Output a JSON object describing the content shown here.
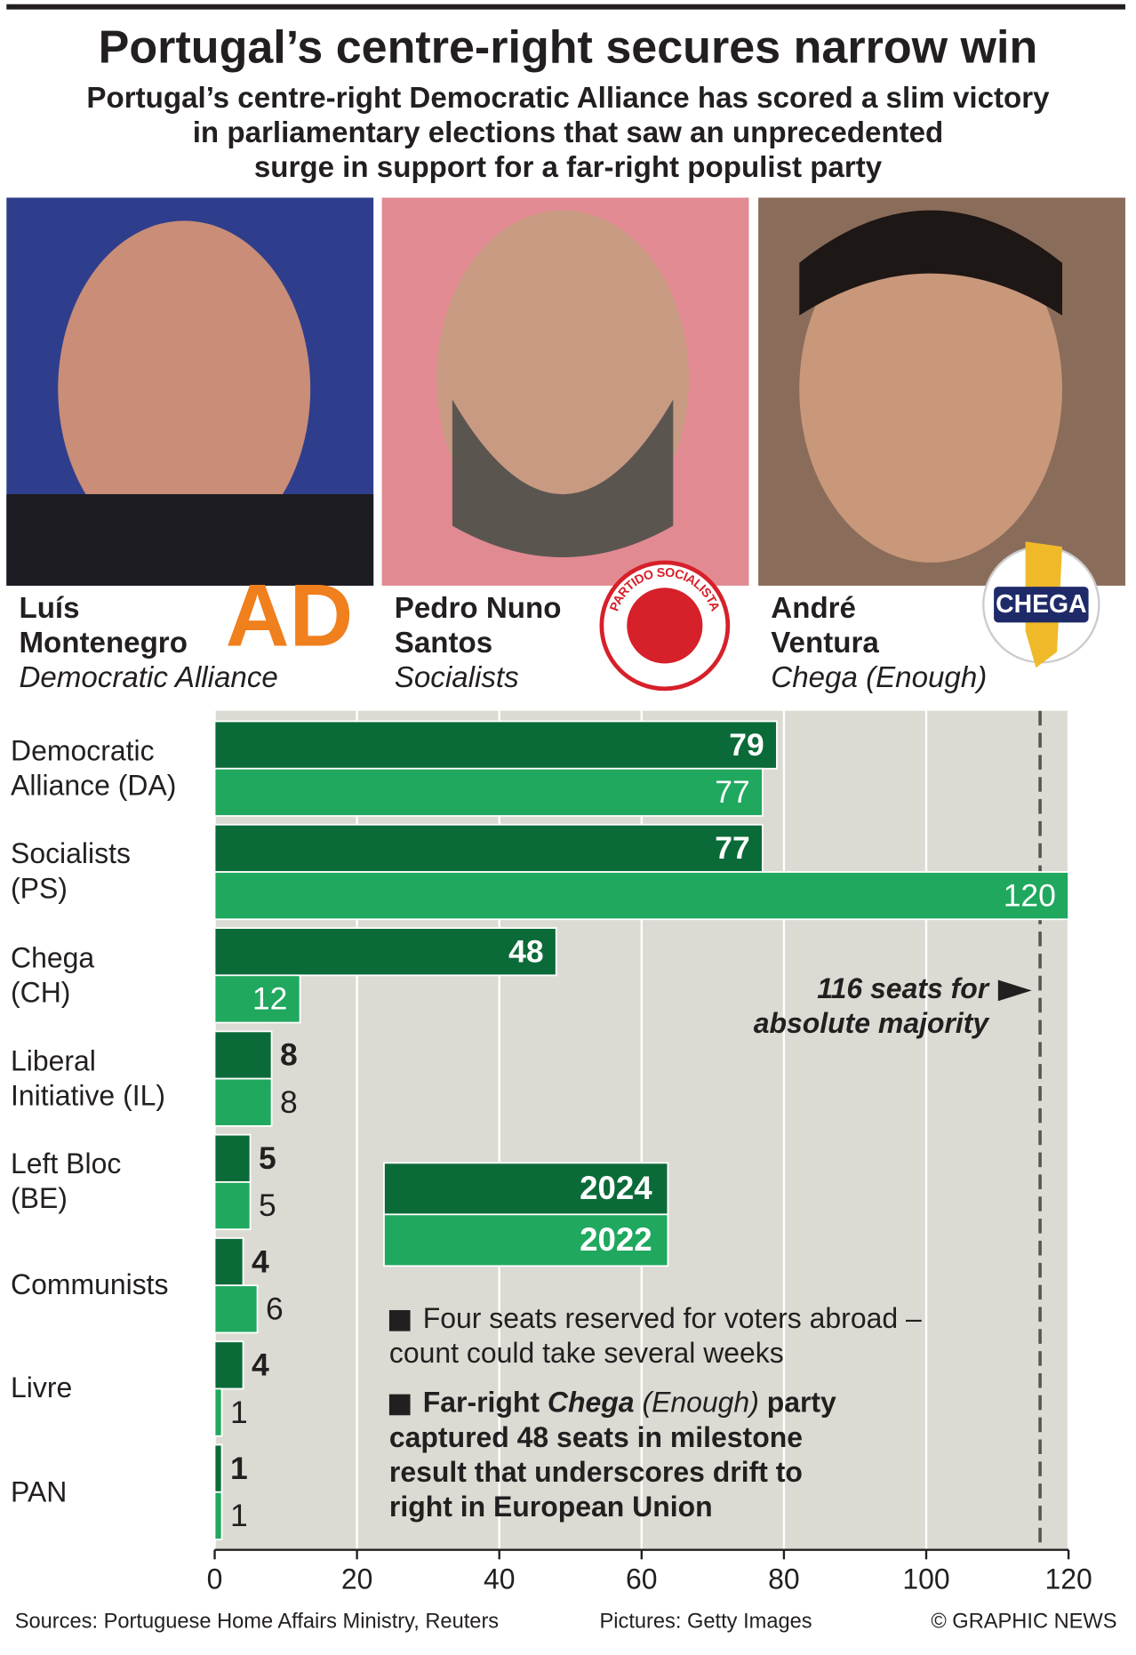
{
  "header": {
    "title": "Portugal’s centre-right secures narrow win",
    "subtitle_lines": [
      "Portugal’s centre-right Democratic Alliance has scored a slim victory",
      "in parliamentary elections that saw an unprecedented",
      "surge in support for a far-right populist party"
    ]
  },
  "leaders": [
    {
      "name_lines": [
        "Luís",
        "Montenegro"
      ],
      "party": "Democratic Alliance",
      "logo": "AD"
    },
    {
      "name_lines": [
        "Pedro Nuno",
        "Santos"
      ],
      "party": "Socialists",
      "logo": "PARTIDO SOCIALISTA"
    },
    {
      "name_lines": [
        "André",
        "Ventura"
      ],
      "party": "Chega (Enough)",
      "logo": "CHEGA"
    }
  ],
  "chart_data": {
    "type": "hbar",
    "categories": [
      "Democratic\nAlliance (DA)",
      "Socialists\n(PS)",
      "Chega\n(CH)",
      "Liberal\nInitiative (IL)",
      "Left Bloc\n(BE)",
      "Communists",
      "Livre",
      "PAN"
    ],
    "series": [
      {
        "name": "2024",
        "color": "#0b6b38",
        "values": [
          79,
          77,
          48,
          8,
          5,
          4,
          4,
          1
        ]
      },
      {
        "name": "2022",
        "color": "#1fa85e",
        "values": [
          77,
          120,
          12,
          8,
          5,
          6,
          1,
          1
        ]
      }
    ],
    "xlim": [
      0,
      120
    ],
    "xticks": [
      0,
      20,
      40,
      60,
      80,
      100,
      120
    ],
    "grid": true,
    "majority": {
      "value": 116,
      "label_lines": [
        "116 seats for",
        "absolute majority"
      ]
    }
  },
  "notes": [
    {
      "parts": [
        "Four seats reserved for voters abroad – count could take several weeks"
      ]
    },
    {
      "parts": [
        "Far-right ",
        "Chega",
        " (Enough)",
        " party captured 48 seats in milestone result that underscores drift to right in European Union"
      ]
    }
  ],
  "footer": {
    "sources": "Sources: Portuguese Home Affairs Ministry, Reuters",
    "pictures": "Pictures: Getty Images",
    "credit": "© GRAPHIC NEWS"
  }
}
